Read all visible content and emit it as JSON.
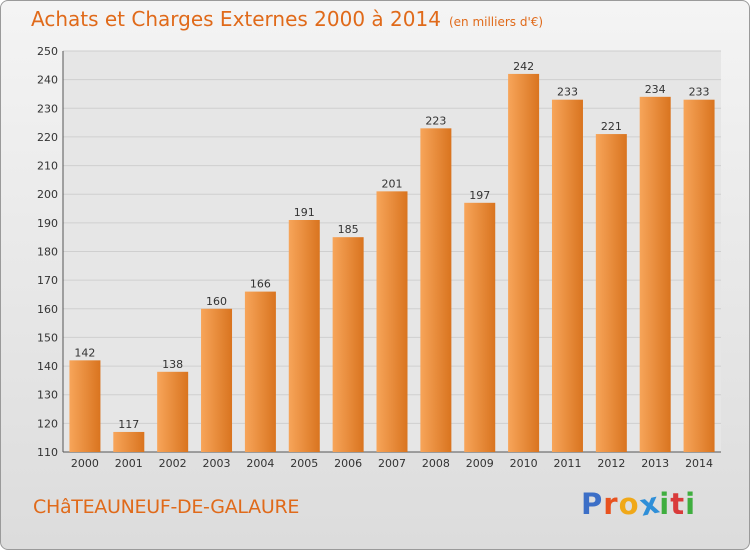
{
  "header": {
    "title": "Achats et Charges Externes 2000 à 2014",
    "subtitle": "(en milliers d'€)"
  },
  "footer": {
    "commune": "CHâTEAUNEUF-DE-GALAURE",
    "logo": [
      "P",
      "r",
      "o",
      "x",
      "i",
      "t",
      "i"
    ]
  },
  "colors": {
    "bar_light": "#f7a55a",
    "bar_dark": "#d9741f",
    "title": "#e06a1a",
    "logo": [
      "#3c6fc7",
      "#e8521f",
      "#f0a818",
      "#2f8fd8",
      "#3fae3f",
      "#d93b3b",
      "#3fae3f"
    ]
  },
  "chart_data": {
    "type": "bar",
    "categories": [
      "2000",
      "2001",
      "2002",
      "2003",
      "2004",
      "2005",
      "2006",
      "2007",
      "2008",
      "2009",
      "2010",
      "2011",
      "2012",
      "2013",
      "2014"
    ],
    "values": [
      142,
      117,
      138,
      160,
      166,
      191,
      185,
      201,
      223,
      197,
      242,
      233,
      221,
      234,
      233
    ],
    "title": "Achats et Charges Externes 2000 à 2014",
    "ylim": [
      110,
      250
    ],
    "yticks": [
      110,
      120,
      130,
      140,
      150,
      160,
      170,
      180,
      190,
      200,
      210,
      220,
      230,
      240,
      250
    ],
    "grid": true,
    "data_labels": true
  }
}
